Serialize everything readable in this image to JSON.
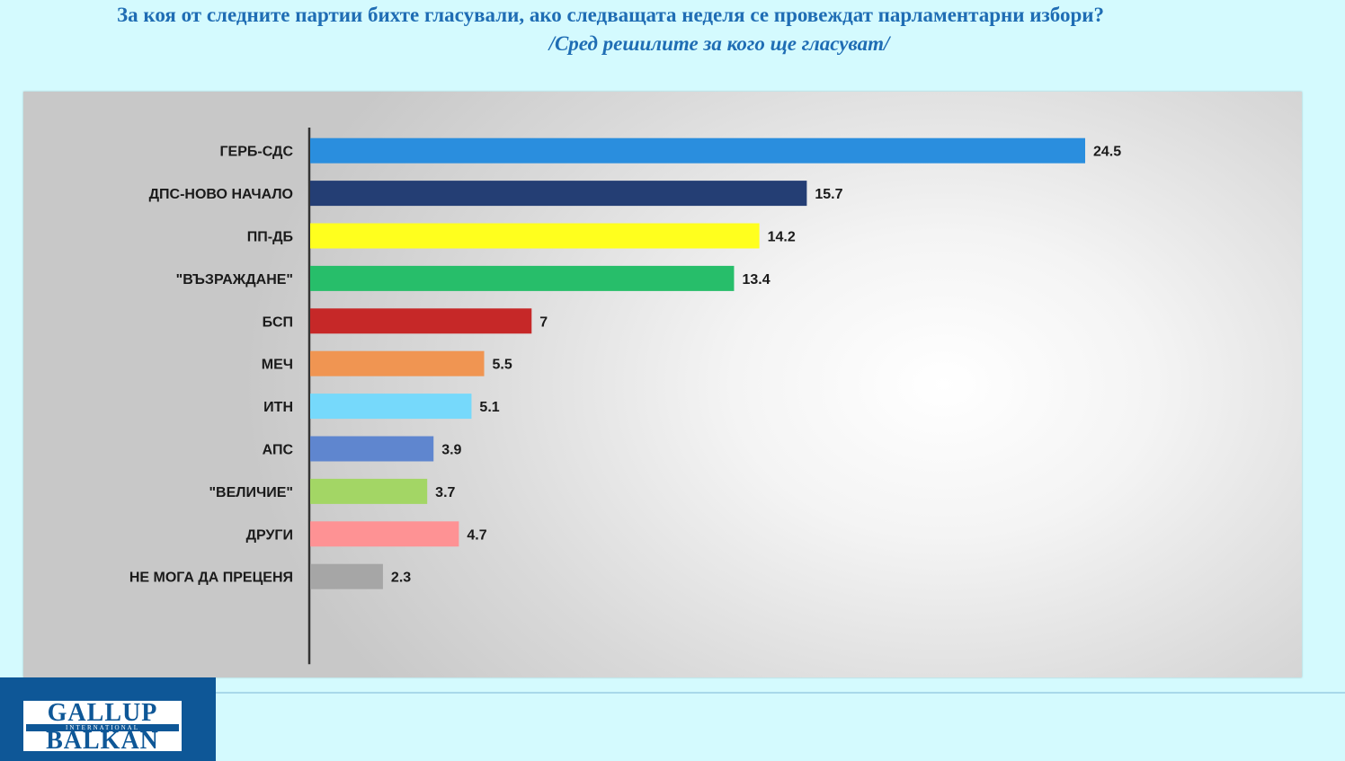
{
  "header": {
    "title": "За коя от следните партии бихте  гласували,  ако следващата неделя се провеждат парламентарни избори?",
    "subtitle": "/Сред решилите за кого ще гласуват/"
  },
  "logo": {
    "line1": "GALLUP",
    "line2": "INTERNATIONAL",
    "line3": "BALKAN"
  },
  "chart_data": {
    "type": "bar",
    "orientation": "horizontal",
    "categories": [
      "ГЕРБ-СДС",
      "ДПС-НОВО НАЧАЛО",
      "ПП-ДБ",
      "\"ВЪЗРАЖДАНЕ\"",
      "БСП",
      "МЕЧ",
      "ИТН",
      "АПС",
      "\"ВЕЛИЧИЕ\"",
      "ДРУГИ",
      "НЕ МОГА ДА ПРЕЦЕНЯ"
    ],
    "values": [
      24.5,
      15.7,
      14.2,
      13.4,
      7,
      5.5,
      5.1,
      3.9,
      3.7,
      4.7,
      2.3
    ],
    "colors": [
      "#2a8ede",
      "#243e74",
      "#ffff1e",
      "#27be6a",
      "#c62828",
      "#f09552",
      "#76d9fb",
      "#5f86cf",
      "#a3d665",
      "#fe9294",
      "#a6a6a6"
    ],
    "data_labels": true,
    "grid": false
  }
}
